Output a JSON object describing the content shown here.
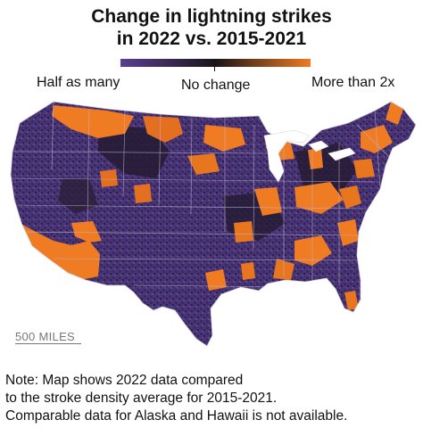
{
  "title": {
    "line1": "Change in lightning strikes",
    "line2": "in 2022 vs. 2015-2021"
  },
  "legend": {
    "low_label": "Half as many",
    "mid_label": "No change",
    "high_label": "More than 2x",
    "colors": {
      "low": "#5b3f93",
      "mid": "#1a1418",
      "high": "#ef7b22"
    }
  },
  "scale_bar": {
    "label": "500 MILES"
  },
  "note": {
    "line1": "Note: Map shows 2022 data compared",
    "line2": "to the stroke density average for 2015-2021.",
    "line3": "Comparable data for Alaska and Hawaii is not available."
  },
  "map_colors": {
    "land_base": "#4a3478",
    "border": "#bdb6cc",
    "increase": "#ef7b22",
    "dark": "#241a30"
  }
}
